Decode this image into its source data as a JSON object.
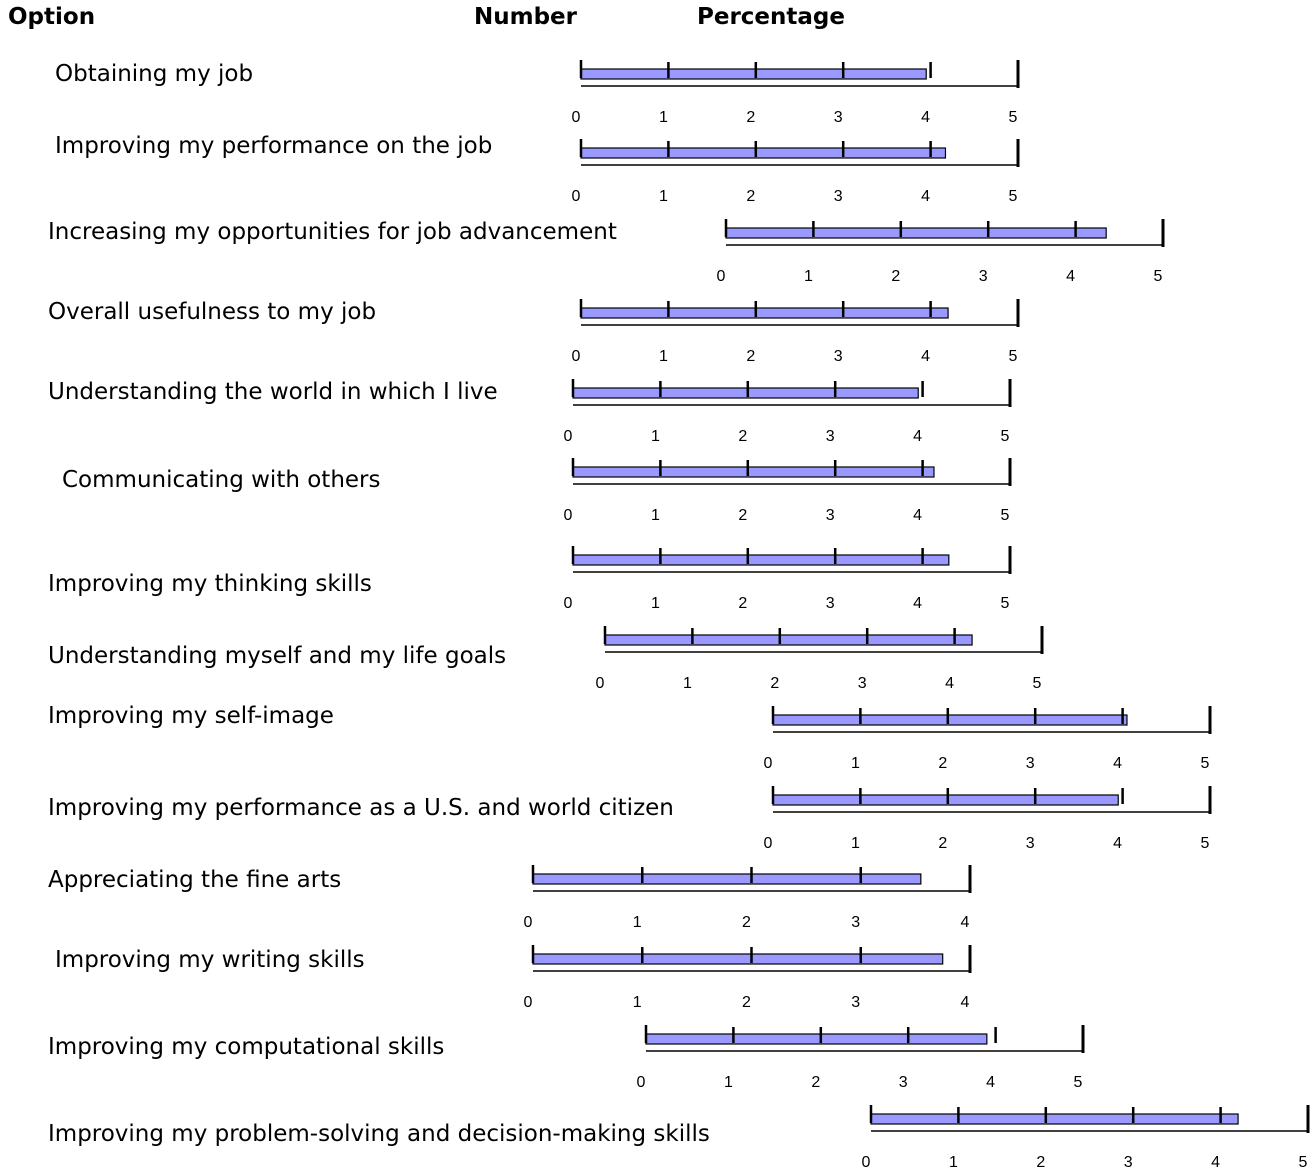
{
  "headers": {
    "option": "Option",
    "number": "Number",
    "percentage": "Percentage"
  },
  "colors": {
    "bar_fill": "#9999ff",
    "bar_stroke": "#000000",
    "axis": "#000000"
  },
  "chart_data": {
    "type": "bar",
    "orientation": "horizontal",
    "categories": [
      "Obtaining my job",
      "Improving my performance on the job",
      "Increasing my opportunities for job advancement",
      "Overall usefulness to my job",
      "Understanding the world in which I live",
      "Communicating with others",
      "Improving my thinking skills",
      "Understanding myself and my life goals",
      "Improving my self-image",
      "Improving my performance as a U.S. and world citizen",
      "Appreciating the fine arts",
      "Improving my writing skills",
      "Improving my computational skills",
      "Improving my problem-solving and decision-making skills"
    ],
    "values": [
      3.95,
      4.17,
      4.35,
      4.2,
      3.95,
      4.13,
      4.3,
      4.2,
      4.05,
      3.95,
      3.55,
      3.75,
      3.9,
      4.2
    ],
    "xlims": [
      [
        0,
        5
      ],
      [
        0,
        5
      ],
      [
        0,
        5
      ],
      [
        0,
        5
      ],
      [
        0,
        5
      ],
      [
        0,
        5
      ],
      [
        0,
        5
      ],
      [
        0,
        5
      ],
      [
        0,
        5
      ],
      [
        0,
        5
      ],
      [
        0,
        4
      ],
      [
        0,
        4
      ],
      [
        0,
        5
      ],
      [
        0,
        5
      ]
    ],
    "tick_labels": [
      [
        "0",
        "1",
        "2",
        "3",
        "4",
        "5"
      ],
      [
        "0",
        "1",
        "2",
        "3",
        "4",
        "5"
      ],
      [
        "0",
        "1",
        "2",
        "3",
        "4",
        "5"
      ],
      [
        "0",
        "1",
        "2",
        "3",
        "4",
        "5"
      ],
      [
        "0",
        "1",
        "2",
        "3",
        "4",
        "5"
      ],
      [
        "0",
        "1",
        "2",
        "3",
        "4",
        "5"
      ],
      [
        "0",
        "1",
        "2",
        "3",
        "4",
        "5"
      ],
      [
        "0",
        "1",
        "2",
        "3",
        "4",
        "5"
      ],
      [
        "0",
        "1",
        "2",
        "3",
        "4",
        "5"
      ],
      [
        "0",
        "1",
        "2",
        "3",
        "4",
        "5"
      ],
      [
        "0",
        "1",
        "2",
        "3",
        "4"
      ],
      [
        "0",
        "1",
        "2",
        "3",
        "4"
      ],
      [
        "0",
        "1",
        "2",
        "3",
        "4",
        "5"
      ],
      [
        "0",
        "1",
        "2",
        "3",
        "4",
        "5"
      ]
    ],
    "grid": false
  }
}
